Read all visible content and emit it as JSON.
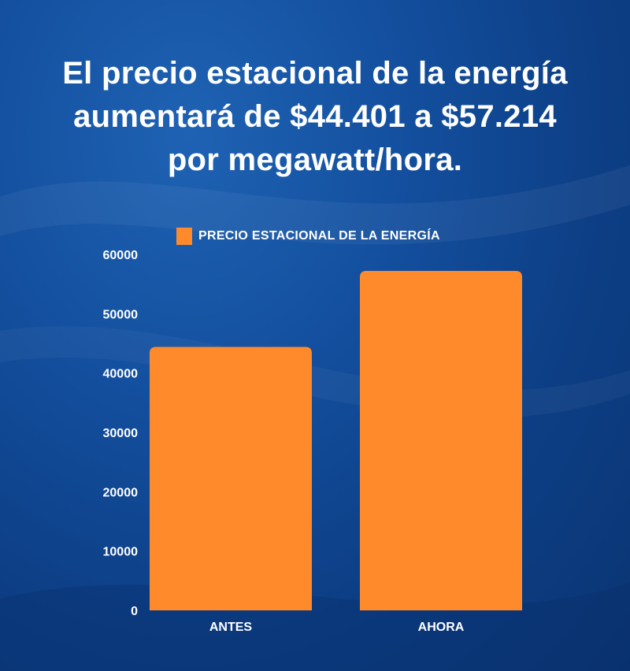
{
  "title_lines": [
    "El precio estacional de la energía",
    "aumentará de $44.401 a $57.214",
    "por megawatt/hora."
  ],
  "colors": {
    "bar": "#ff8a2c",
    "text": "#ffffff",
    "background": "#134f9e"
  },
  "chart_data": {
    "type": "bar",
    "title": "",
    "xlabel": "",
    "ylabel": "",
    "categories": [
      "ANTES",
      "AHORA"
    ],
    "series": [
      {
        "name": "PRECIO ESTACIONAL DE LA ENERGÍA",
        "values": [
          44401,
          57214
        ]
      }
    ],
    "ylim": [
      0,
      60000
    ],
    "yticks": [
      0,
      10000,
      20000,
      30000,
      40000,
      50000,
      60000
    ],
    "grid": false,
    "legend": "top"
  }
}
